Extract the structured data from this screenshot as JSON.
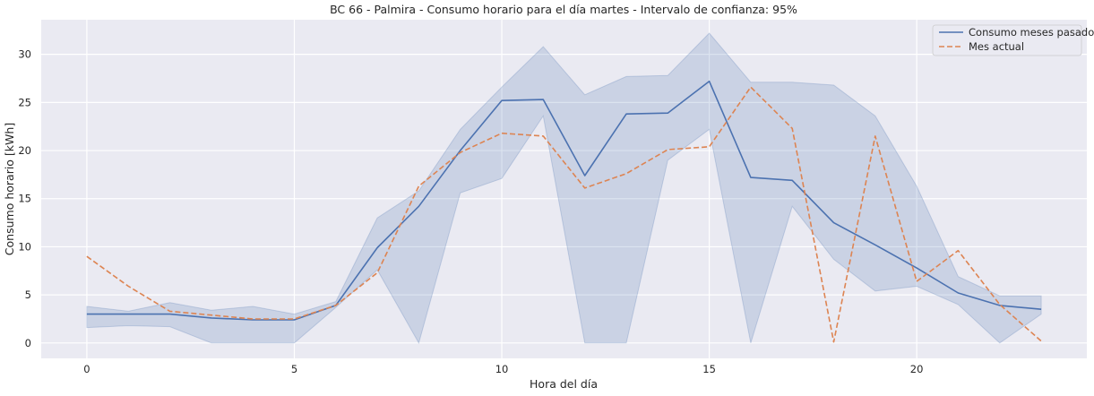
{
  "chart_data": {
    "type": "line",
    "title": "BC 66 - Palmira - Consumo horario para el día martes - Intervalo de confianza: 95%",
    "xlabel": "Hora del día",
    "ylabel": "Consumo horario [kWh]",
    "xlim": [
      -1.1,
      24.1
    ],
    "ylim": [
      -1.6,
      33.6
    ],
    "xticks": [
      0,
      5,
      10,
      15,
      20
    ],
    "yticks": [
      0,
      5,
      10,
      15,
      20,
      25,
      30
    ],
    "grid": true,
    "legend_position": "top-right",
    "x": [
      0,
      1,
      2,
      3,
      4,
      5,
      6,
      7,
      8,
      9,
      10,
      11,
      12,
      13,
      14,
      15,
      16,
      17,
      18,
      19,
      20,
      21,
      22,
      23
    ],
    "series": [
      {
        "name": "Consumo meses pasados",
        "color": "#4c72b0",
        "style": "solid",
        "values": [
          3.0,
          3.0,
          3.0,
          2.6,
          2.4,
          2.4,
          3.9,
          9.9,
          14.2,
          20.0,
          25.2,
          25.3,
          17.4,
          23.8,
          23.9,
          27.2,
          17.2,
          16.9,
          12.5,
          10.2,
          7.8,
          5.2,
          3.9,
          3.5
        ],
        "ci_lower": [
          1.6,
          1.8,
          1.7,
          0.0,
          0.0,
          0.0,
          3.7,
          7.6,
          0.0,
          15.6,
          17.1,
          23.6,
          0.0,
          0.0,
          19.0,
          22.2,
          0.0,
          14.2,
          8.7,
          5.4,
          5.9,
          4.0,
          0.0,
          3.0
        ],
        "ci_upper": [
          3.8,
          3.3,
          4.2,
          3.4,
          3.8,
          3.0,
          4.3,
          13.0,
          15.8,
          22.2,
          26.6,
          30.8,
          25.8,
          27.7,
          27.8,
          32.2,
          27.1,
          27.1,
          26.8,
          23.6,
          16.3,
          6.9,
          4.9,
          4.9
        ]
      },
      {
        "name": "Mes actual",
        "color": "#dd8452",
        "style": "dashed",
        "values": [
          9.0,
          5.9,
          3.3,
          2.9,
          2.5,
          2.5,
          3.9,
          7.3,
          16.3,
          19.8,
          21.8,
          21.5,
          16.1,
          17.6,
          20.1,
          20.4,
          26.6,
          22.3,
          0.1,
          21.5,
          6.4,
          9.6,
          4.0,
          0.2
        ]
      }
    ]
  }
}
